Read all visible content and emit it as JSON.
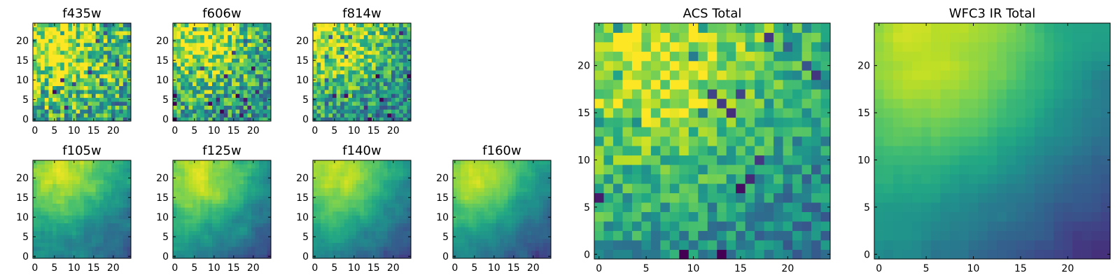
{
  "chart_data": [
    {
      "type": "heatmap",
      "title": "f435w",
      "grid_size": 25,
      "xticks": [
        "0",
        "5",
        "10",
        "15",
        "20"
      ],
      "yticks": [
        "0",
        "5",
        "10",
        "15",
        "20"
      ],
      "colormap": "viridis",
      "pattern": "noisy",
      "peak": [
        6,
        18
      ],
      "spread": 9,
      "noise": 0.55,
      "falloff": 0.1,
      "seed": 11
    },
    {
      "type": "heatmap",
      "title": "f606w",
      "grid_size": 25,
      "xticks": [
        "0",
        "5",
        "10",
        "15",
        "20"
      ],
      "yticks": [
        "0",
        "5",
        "10",
        "15",
        "20"
      ],
      "colormap": "viridis",
      "pattern": "noisy",
      "peak": [
        8,
        19
      ],
      "spread": 8,
      "noise": 0.5,
      "falloff": 0.2,
      "seed": 23
    },
    {
      "type": "heatmap",
      "title": "f814w",
      "grid_size": 25,
      "xticks": [
        "0",
        "5",
        "10",
        "15",
        "20"
      ],
      "yticks": [
        "0",
        "5",
        "10",
        "15",
        "20"
      ],
      "colormap": "viridis",
      "pattern": "noisy",
      "peak": [
        7,
        20
      ],
      "spread": 8,
      "noise": 0.45,
      "falloff": 0.3,
      "seed": 37
    },
    {
      "type": "heatmap",
      "title": "f105w",
      "grid_size": 25,
      "xticks": [
        "0",
        "5",
        "10",
        "15",
        "20"
      ],
      "yticks": [
        "0",
        "5",
        "10",
        "15",
        "20"
      ],
      "colormap": "viridis",
      "pattern": "smooth",
      "peak": [
        8,
        20
      ],
      "spread": 8,
      "noise": 0.3,
      "falloff": 0.55,
      "seed": 41
    },
    {
      "type": "heatmap",
      "title": "f125w",
      "grid_size": 25,
      "xticks": [
        "0",
        "5",
        "10",
        "15",
        "20"
      ],
      "yticks": [
        "0",
        "5",
        "10",
        "15",
        "20"
      ],
      "colormap": "viridis",
      "pattern": "smooth",
      "peak": [
        8,
        20
      ],
      "spread": 8,
      "noise": 0.28,
      "falloff": 0.55,
      "seed": 53
    },
    {
      "type": "heatmap",
      "title": "f140w",
      "grid_size": 25,
      "xticks": [
        "0",
        "5",
        "10",
        "15",
        "20"
      ],
      "yticks": [
        "0",
        "5",
        "10",
        "15",
        "20"
      ],
      "colormap": "viridis",
      "pattern": "smooth",
      "peak": [
        7,
        19
      ],
      "spread": 8,
      "noise": 0.25,
      "falloff": 0.6,
      "seed": 67
    },
    {
      "type": "heatmap",
      "title": "f160w",
      "grid_size": 25,
      "xticks": [
        "0",
        "5",
        "10",
        "15",
        "20"
      ],
      "yticks": [
        "0",
        "5",
        "10",
        "15",
        "20"
      ],
      "colormap": "viridis",
      "pattern": "smooth",
      "peak": [
        7,
        19
      ],
      "spread": 8,
      "noise": 0.22,
      "falloff": 0.65,
      "seed": 79
    },
    {
      "type": "heatmap",
      "title": "ACS Total",
      "grid_size": 25,
      "xticks": [
        "0",
        "5",
        "10",
        "15",
        "20"
      ],
      "yticks": [
        "0",
        "5",
        "10",
        "15",
        "20"
      ],
      "colormap": "viridis",
      "pattern": "noisy",
      "peak": [
        7,
        21
      ],
      "spread": 9,
      "noise": 0.32,
      "falloff": 0.35,
      "seed": 97
    },
    {
      "type": "heatmap",
      "title": "WFC3 IR Total",
      "grid_size": 25,
      "xticks": [
        "0",
        "5",
        "10",
        "15",
        "20"
      ],
      "yticks": [
        "0",
        "5",
        "10",
        "15",
        "20"
      ],
      "colormap": "viridis",
      "pattern": "smooth",
      "peak": [
        7,
        20
      ],
      "spread": 9,
      "noise": 0.12,
      "falloff": 0.75,
      "seed": 113
    }
  ]
}
